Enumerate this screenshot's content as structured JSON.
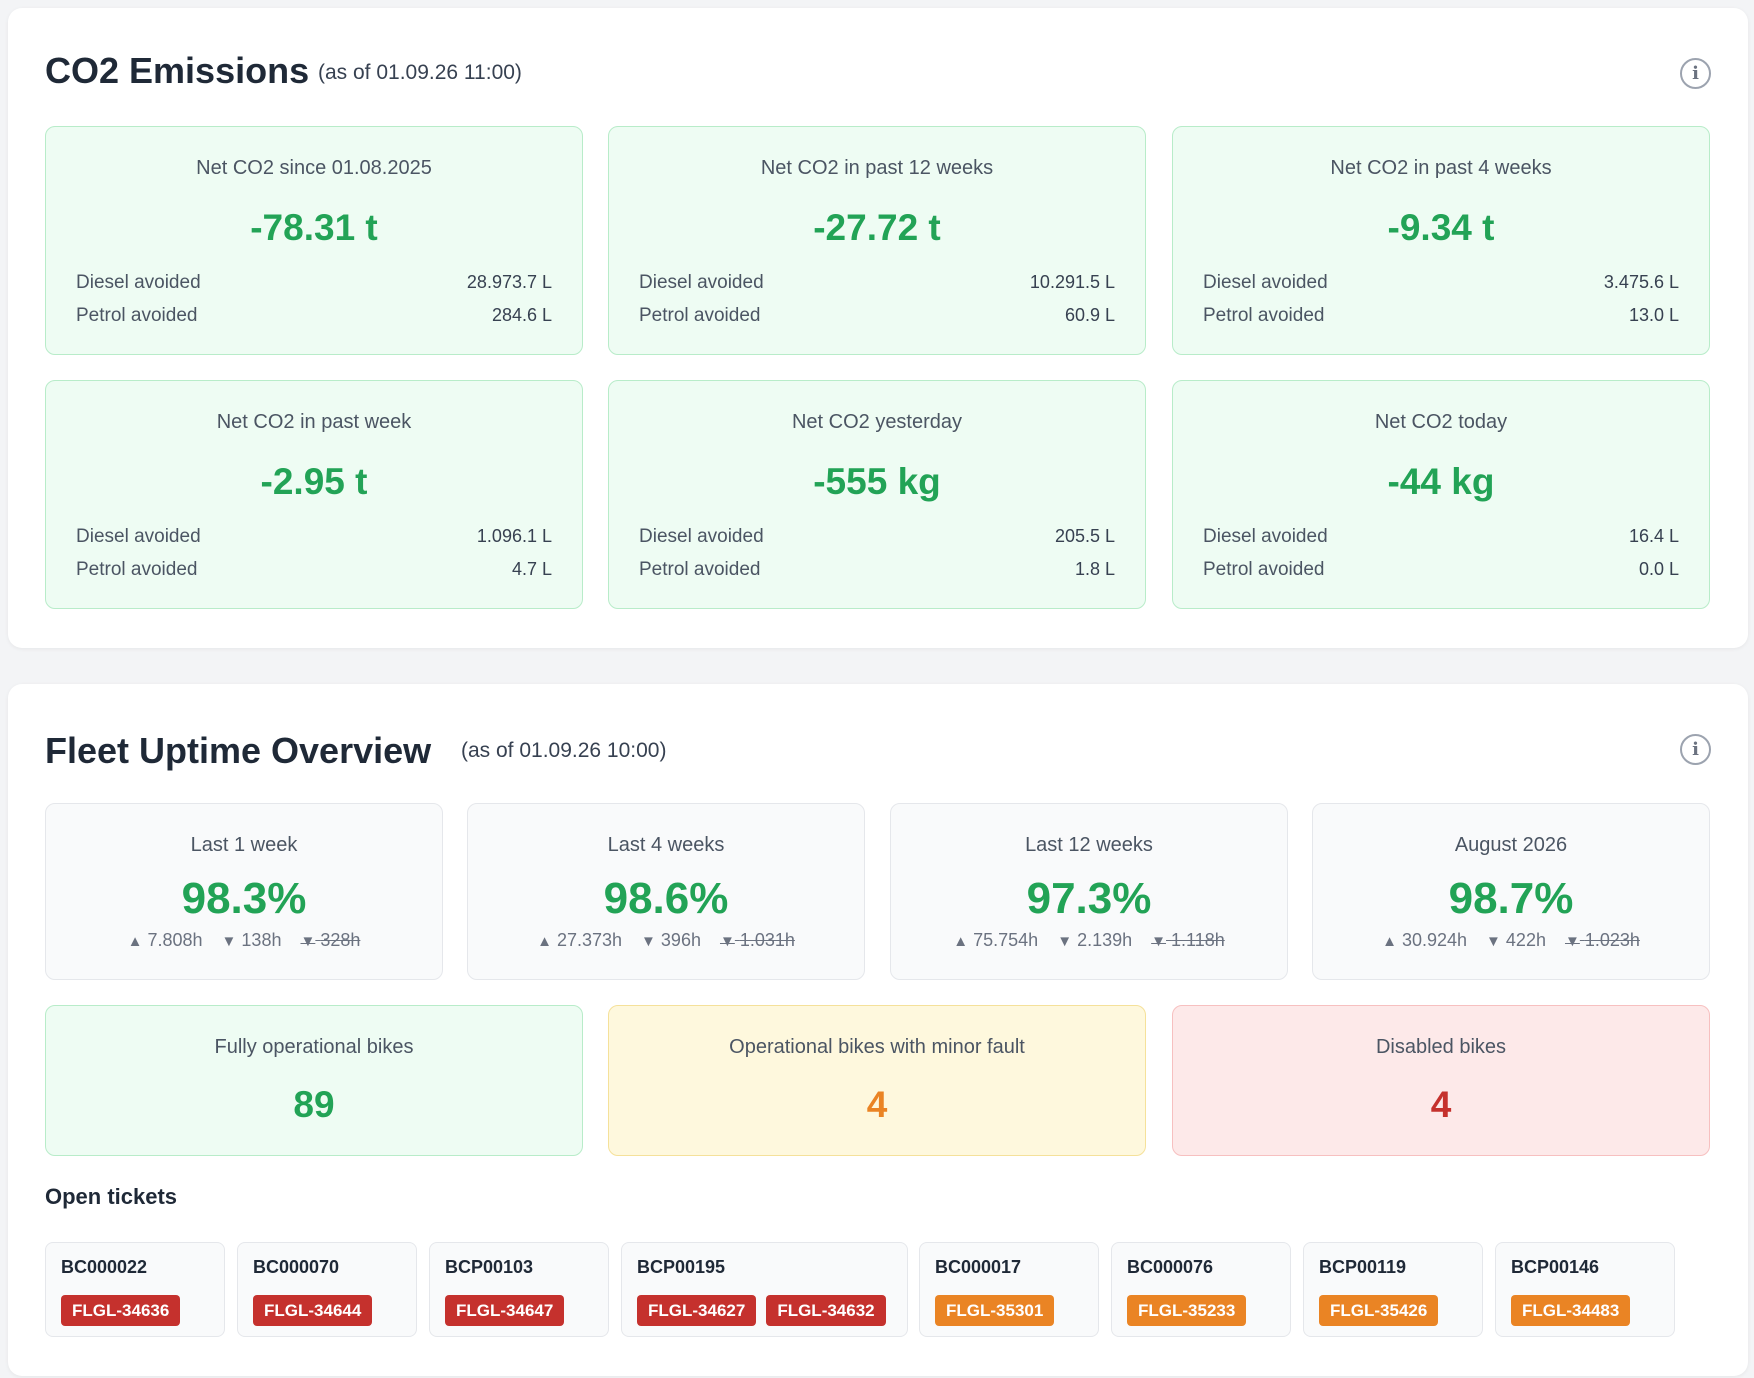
{
  "co2": {
    "title": "CO2 Emissions",
    "as_of": "(as of 01.09.26 11:00)",
    "cards": [
      {
        "label": "Net CO2 since 01.08.2025",
        "value": "-78.31 t",
        "diesel_label": "Diesel avoided",
        "diesel": "28.973.7 L",
        "petrol_label": "Petrol avoided",
        "petrol": "284.6 L"
      },
      {
        "label": "Net CO2 in past 12 weeks",
        "value": "-27.72 t",
        "diesel_label": "Diesel avoided",
        "diesel": "10.291.5 L",
        "petrol_label": "Petrol avoided",
        "petrol": "60.9 L"
      },
      {
        "label": "Net CO2 in past 4 weeks",
        "value": "-9.34 t",
        "diesel_label": "Diesel avoided",
        "diesel": "3.475.6 L",
        "petrol_label": "Petrol avoided",
        "petrol": "13.0 L"
      },
      {
        "label": "Net CO2 in past week",
        "value": "-2.95 t",
        "diesel_label": "Diesel avoided",
        "diesel": "1.096.1 L",
        "petrol_label": "Petrol avoided",
        "petrol": "4.7 L"
      },
      {
        "label": "Net CO2 yesterday",
        "value": "-555 kg",
        "diesel_label": "Diesel avoided",
        "diesel": "205.5 L",
        "petrol_label": "Petrol avoided",
        "petrol": "1.8 L"
      },
      {
        "label": "Net CO2 today",
        "value": "-44 kg",
        "diesel_label": "Diesel avoided",
        "diesel": "16.4 L",
        "petrol_label": "Petrol avoided",
        "petrol": "0.0 L"
      }
    ]
  },
  "fleet": {
    "title": "Fleet Uptime Overview",
    "as_of": "(as of 01.09.26 10:00)",
    "uptime": [
      {
        "label": "Last 1 week",
        "value": "98.3%",
        "up": "7.808h",
        "down": "138h",
        "excluded": "328h"
      },
      {
        "label": "Last 4 weeks",
        "value": "98.6%",
        "up": "27.373h",
        "down": "396h",
        "excluded": "1.031h"
      },
      {
        "label": "Last 12 weeks",
        "value": "97.3%",
        "up": "75.754h",
        "down": "2.139h",
        "excluded": "1.118h"
      },
      {
        "label": "August 2026",
        "value": "98.7%",
        "up": "30.924h",
        "down": "422h",
        "excluded": "1.023h"
      }
    ],
    "status": [
      {
        "label": "Fully operational bikes",
        "value": "89",
        "color": "#22a356"
      },
      {
        "label": "Operational bikes with minor fault",
        "value": "4",
        "color": "#ea8424"
      },
      {
        "label": "Disabled bikes",
        "value": "4",
        "color": "#c5312d"
      }
    ],
    "tickets_title": "Open tickets",
    "tickets": [
      {
        "bike": "BC000022",
        "tags": [
          "FLGL-34636"
        ],
        "severity": "red"
      },
      {
        "bike": "BC000070",
        "tags": [
          "FLGL-34644"
        ],
        "severity": "red"
      },
      {
        "bike": "BCP00103",
        "tags": [
          "FLGL-34647"
        ],
        "severity": "red"
      },
      {
        "bike": "BCP00195",
        "tags": [
          "FLGL-34627",
          "FLGL-34632"
        ],
        "severity": "red"
      },
      {
        "bike": "BC000017",
        "tags": [
          "FLGL-35301"
        ],
        "severity": "orange"
      },
      {
        "bike": "BC000076",
        "tags": [
          "FLGL-35233"
        ],
        "severity": "orange"
      },
      {
        "bike": "BCP00119",
        "tags": [
          "FLGL-35426"
        ],
        "severity": "orange"
      },
      {
        "bike": "BCP00146",
        "tags": [
          "FLGL-34483"
        ],
        "severity": "orange"
      }
    ]
  },
  "icons": {
    "info": "info-icon",
    "up": "triangle-up-icon",
    "down": "triangle-down-icon",
    "excluded": "triangle-down-strike-icon"
  },
  "colors": {
    "green": "#22a356",
    "orange": "#ea8424",
    "red": "#c5312d"
  }
}
